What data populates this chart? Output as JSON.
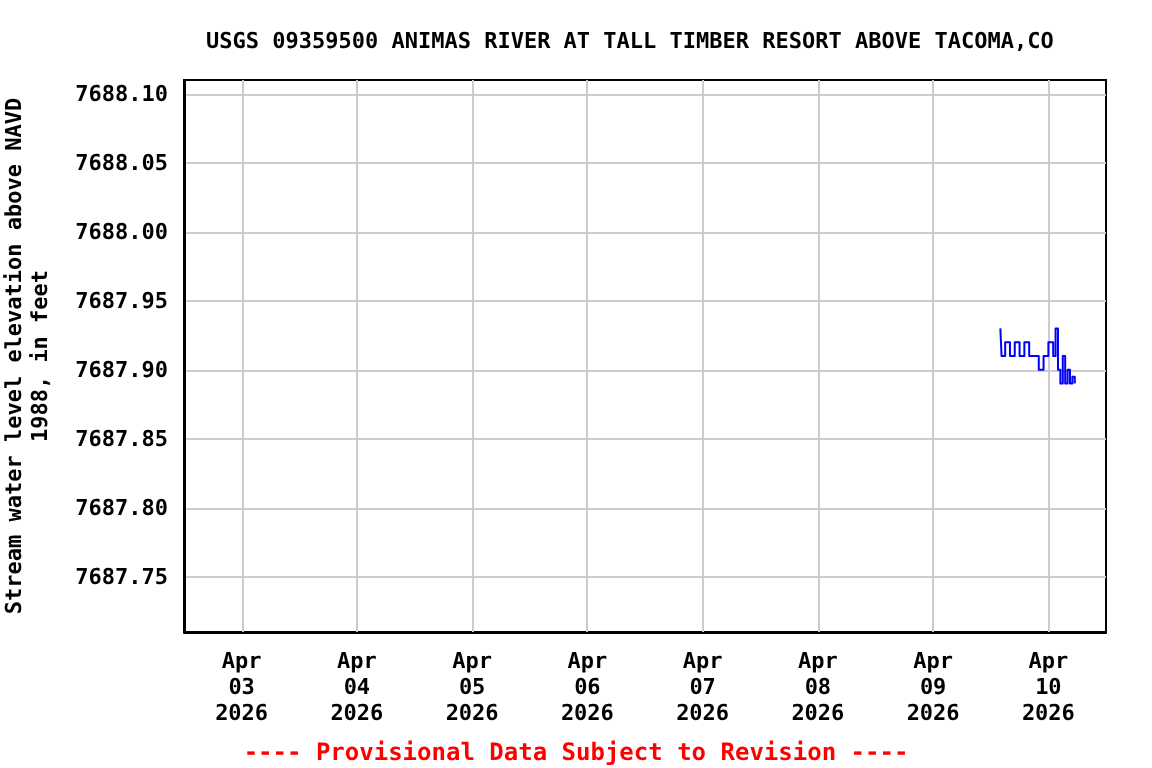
{
  "chart_data": {
    "type": "step",
    "title": "USGS 09359500 ANIMAS RIVER AT TALL TIMBER RESORT ABOVE TACOMA,CO",
    "ylabel": "Stream water level elevation above NAVD\n1988, in feet",
    "annotations": [
      "---- Provisional Data Subject to Revision ----"
    ],
    "x": [
      "2026-04-09T14:00",
      "2026-04-09T14:15",
      "2026-04-09T15:00",
      "2026-04-09T16:00",
      "2026-04-09T17:00",
      "2026-04-09T18:00",
      "2026-04-09T19:00",
      "2026-04-09T20:00",
      "2026-04-09T21:00",
      "2026-04-09T22:00",
      "2026-04-09T23:00",
      "2026-04-10T00:00",
      "2026-04-10T01:00",
      "2026-04-10T01:30",
      "2026-04-10T02:00",
      "2026-04-10T02:30",
      "2026-04-10T03:00",
      "2026-04-10T03:30",
      "2026-04-10T04:00",
      "2026-04-10T04:30",
      "2026-04-10T05:00",
      "2026-04-10T05:30"
    ],
    "series": [
      {
        "color": "#0000ff",
        "values": [
          7687.93,
          7687.91,
          7687.92,
          7687.91,
          7687.92,
          7687.91,
          7687.92,
          7687.91,
          7687.91,
          7687.9,
          7687.91,
          7687.92,
          7687.91,
          7687.93,
          7687.9,
          7687.89,
          7687.91,
          7687.89,
          7687.9,
          7687.89,
          7687.895,
          7687.89
        ]
      }
    ],
    "xlim": [
      "2026-04-02T12:00",
      "2026-04-10T12:00"
    ],
    "xticks": [
      {
        "value": "2026-04-03",
        "label": "Apr\n03\n2026"
      },
      {
        "value": "2026-04-04",
        "label": "Apr\n04\n2026"
      },
      {
        "value": "2026-04-05",
        "label": "Apr\n05\n2026"
      },
      {
        "value": "2026-04-06",
        "label": "Apr\n06\n2026"
      },
      {
        "value": "2026-04-07",
        "label": "Apr\n07\n2026"
      },
      {
        "value": "2026-04-08",
        "label": "Apr\n08\n2026"
      },
      {
        "value": "2026-04-09",
        "label": "Apr\n09\n2026"
      },
      {
        "value": "2026-04-10",
        "label": "Apr\n10\n2026"
      }
    ],
    "ylim": [
      7687.71,
      7688.11
    ],
    "yticks": [
      {
        "value": 7687.75,
        "label": "7687.75"
      },
      {
        "value": 7687.8,
        "label": "7687.80"
      },
      {
        "value": 7687.85,
        "label": "7687.85"
      },
      {
        "value": 7687.9,
        "label": "7687.90"
      },
      {
        "value": 7687.95,
        "label": "7687.95"
      },
      {
        "value": 7688.0,
        "label": "7688.00"
      },
      {
        "value": 7688.05,
        "label": "7688.05"
      },
      {
        "value": 7688.1,
        "label": "7688.10"
      }
    ],
    "grid": true,
    "marker": "none",
    "line_style": "solid"
  }
}
